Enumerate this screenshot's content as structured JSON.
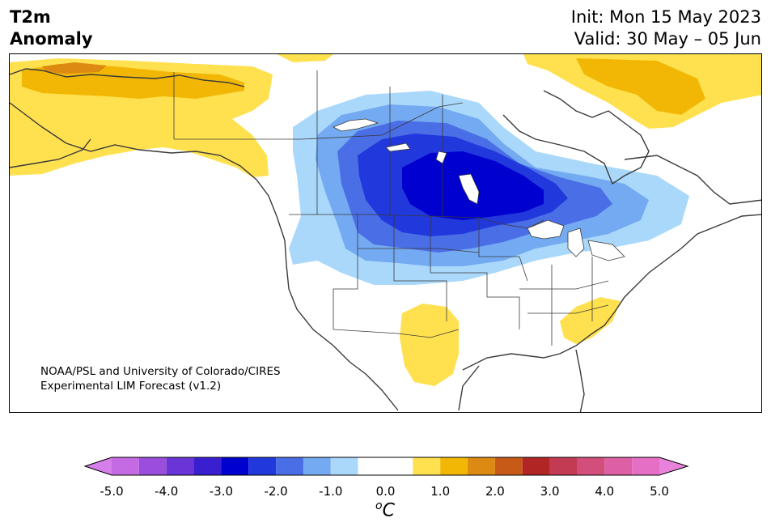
{
  "title": {
    "variable": "T2m",
    "subtitle": "Anomaly",
    "init": "Init: Mon 15 May 2023",
    "valid": "Valid: 30 May – 05 Jun"
  },
  "credit": {
    "line1": "NOAA/PSL and University of Colorado/CIRES",
    "line2": "Experimental LIM Forecast (v1.2)"
  },
  "colorbar": {
    "unit_sup": "o",
    "unit_main": "C",
    "bins": [
      {
        "range": [
          -5.5,
          -5.0
        ],
        "color": "#d67ee9",
        "extend": "min"
      },
      {
        "range": [
          -5.0,
          -4.5
        ],
        "color": "#c46be3"
      },
      {
        "range": [
          -4.5,
          -4.0
        ],
        "color": "#9a4edb"
      },
      {
        "range": [
          -4.0,
          -3.5
        ],
        "color": "#6a35d6"
      },
      {
        "range": [
          -3.5,
          -3.0
        ],
        "color": "#3a1fd0"
      },
      {
        "range": [
          -3.0,
          -2.5
        ],
        "color": "#0000cf"
      },
      {
        "range": [
          -2.5,
          -2.0
        ],
        "color": "#2138dc"
      },
      {
        "range": [
          -2.0,
          -1.5
        ],
        "color": "#4a6ee6"
      },
      {
        "range": [
          -1.5,
          -1.0
        ],
        "color": "#74aaf1"
      },
      {
        "range": [
          -1.0,
          -0.5
        ],
        "color": "#aad8fb"
      },
      {
        "range": [
          -0.5,
          0.5
        ],
        "color": "#ffffff"
      },
      {
        "range": [
          0.5,
          1.0
        ],
        "color": "#ffe14f"
      },
      {
        "range": [
          1.0,
          1.5
        ],
        "color": "#f2b705"
      },
      {
        "range": [
          1.5,
          2.0
        ],
        "color": "#dc8a11"
      },
      {
        "range": [
          2.0,
          2.5
        ],
        "color": "#c85a18"
      },
      {
        "range": [
          2.5,
          3.0
        ],
        "color": "#b22525"
      },
      {
        "range": [
          3.0,
          3.5
        ],
        "color": "#c33a53"
      },
      {
        "range": [
          3.5,
          4.0
        ],
        "color": "#d24e7b"
      },
      {
        "range": [
          4.0,
          4.5
        ],
        "color": "#dd5fa4"
      },
      {
        "range": [
          4.5,
          5.0
        ],
        "color": "#e66fc6"
      },
      {
        "range": [
          5.0,
          5.5
        ],
        "color": "#e883dc",
        "extend": "max"
      }
    ],
    "ticks": [
      "-5.0",
      "-4.0",
      "-3.0",
      "-2.0",
      "-1.0",
      "0.0",
      "1.0",
      "2.0",
      "3.0",
      "4.0",
      "5.0"
    ]
  },
  "map_features": {
    "region": "North America",
    "cold_anomaly_center": "Upper Midwest / Manitoba",
    "warm_anomalies": [
      "Alaska",
      "Greenland",
      "Texas",
      "Carolinas"
    ]
  }
}
